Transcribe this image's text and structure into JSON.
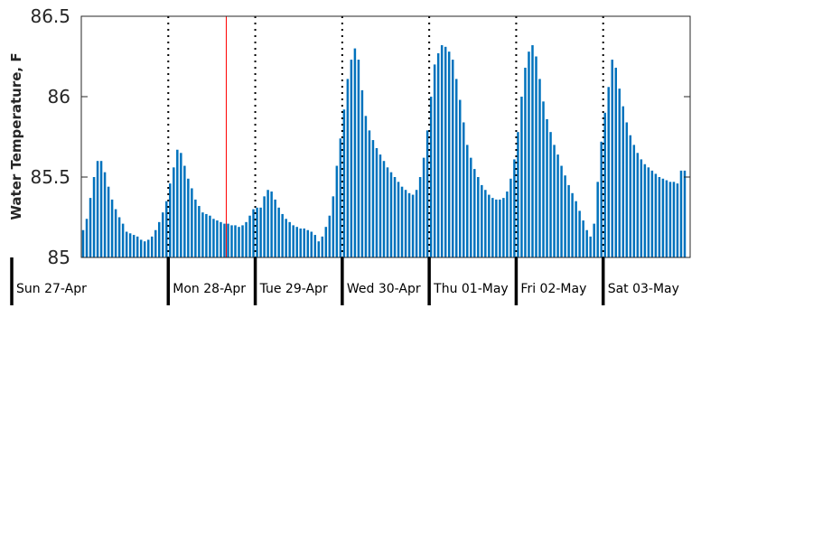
{
  "chart_data": {
    "type": "bar",
    "title": "",
    "xlabel": "",
    "ylabel": "Water Temperature, F",
    "ylim": [
      85,
      86.5
    ],
    "yticks": [
      85,
      85.5,
      86,
      86.5
    ],
    "ytick_labels": [
      "85",
      "85.5",
      "86",
      "86.5"
    ],
    "x_unit": "hour",
    "x_start": "2025-04-27T00:00",
    "x_range_hours": [
      0,
      168
    ],
    "bar_interval_hours": 1,
    "bar_color": "#0072BD",
    "marker_color": "#FF0000",
    "grid": false,
    "day_labels": [
      "Sun 27-Apr",
      "Mon 28-Apr",
      "Tue 29-Apr",
      "Wed 30-Apr",
      "Thu 01-May",
      "Fri 02-May",
      "Sat 03-May"
    ],
    "current_time_marker_hour": 40,
    "values": [
      85.17,
      85.24,
      85.37,
      85.5,
      85.6,
      85.6,
      85.53,
      85.44,
      85.36,
      85.3,
      85.25,
      85.21,
      85.16,
      85.15,
      85.14,
      85.13,
      85.11,
      85.1,
      85.11,
      85.13,
      85.17,
      85.22,
      85.28,
      85.35,
      85.46,
      85.56,
      85.67,
      85.65,
      85.57,
      85.49,
      85.43,
      85.36,
      85.32,
      85.28,
      85.27,
      85.26,
      85.24,
      85.23,
      85.22,
      85.21,
      85.21,
      85.2,
      85.2,
      85.19,
      85.2,
      85.22,
      85.26,
      85.3,
      85.31,
      85.31,
      85.38,
      85.42,
      85.41,
      85.36,
      85.31,
      85.27,
      85.24,
      85.22,
      85.2,
      85.19,
      85.18,
      85.18,
      85.17,
      85.16,
      85.14,
      85.1,
      85.13,
      85.19,
      85.26,
      85.38,
      85.57,
      85.74,
      85.92,
      86.11,
      86.23,
      86.3,
      86.23,
      86.04,
      85.88,
      85.79,
      85.73,
      85.68,
      85.64,
      85.6,
      85.56,
      85.53,
      85.5,
      85.47,
      85.44,
      85.42,
      85.4,
      85.39,
      85.42,
      85.5,
      85.62,
      85.79,
      86.0,
      86.2,
      86.27,
      86.32,
      86.31,
      86.28,
      86.23,
      86.11,
      85.98,
      85.84,
      85.7,
      85.62,
      85.55,
      85.5,
      85.45,
      85.42,
      85.39,
      85.37,
      85.36,
      85.36,
      85.37,
      85.41,
      85.49,
      85.61,
      85.78,
      86.0,
      86.18,
      86.28,
      86.32,
      86.25,
      86.11,
      85.97,
      85.86,
      85.78,
      85.7,
      85.64,
      85.57,
      85.51,
      85.45,
      85.4,
      85.35,
      85.29,
      85.23,
      85.17,
      85.13,
      85.21,
      85.47,
      85.72,
      85.9,
      86.06,
      86.23,
      86.18,
      86.05,
      85.94,
      85.84,
      85.76,
      85.7,
      85.65,
      85.61,
      85.58,
      85.56,
      85.54,
      85.52,
      85.5,
      85.49,
      85.48,
      85.47,
      85.47,
      85.46,
      85.54,
      85.54
    ]
  }
}
